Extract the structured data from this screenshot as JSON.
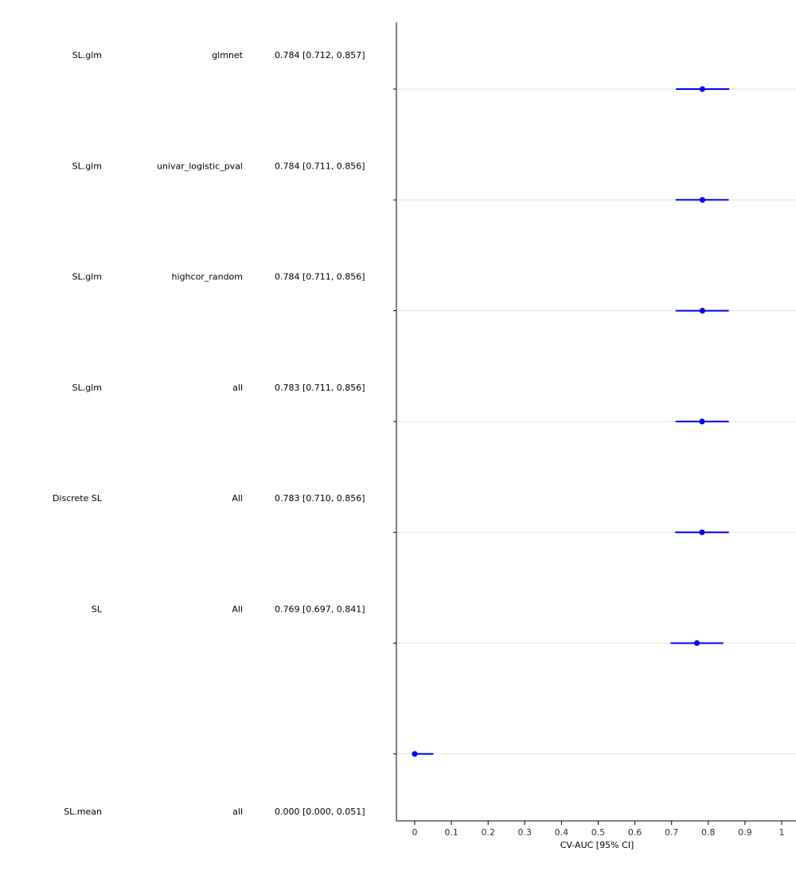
{
  "chart_data": {
    "type": "forest",
    "xlabel": "CV-AUC [95% CI]",
    "xlim": [
      -0.05,
      1.05
    ],
    "xticks": [
      "0",
      "0.1",
      "0.2",
      "0.3",
      "0.4",
      "0.5",
      "0.6",
      "0.7",
      "0.8",
      "0.9",
      "1"
    ],
    "grid": "horizontal",
    "colors": {
      "point": "#0000ee",
      "grid": "#e6e6e6",
      "axis": "#000000"
    },
    "rows": [
      {
        "learner": "SL.glm",
        "screen": "glmnet",
        "ci_text": "0.784 [0.712, 0.857]",
        "estimate": 0.784,
        "lower": 0.712,
        "upper": 0.857
      },
      {
        "learner": "SL.glm",
        "screen": "univar_logistic_pval",
        "ci_text": "0.784 [0.711, 0.856]",
        "estimate": 0.784,
        "lower": 0.711,
        "upper": 0.856
      },
      {
        "learner": "SL.glm",
        "screen": "highcor_random",
        "ci_text": "0.784 [0.711, 0.856]",
        "estimate": 0.784,
        "lower": 0.711,
        "upper": 0.856
      },
      {
        "learner": "SL.glm",
        "screen": "all",
        "ci_text": "0.783 [0.711, 0.856]",
        "estimate": 0.783,
        "lower": 0.711,
        "upper": 0.856
      },
      {
        "learner": "Discrete SL",
        "screen": "All",
        "ci_text": "0.783 [0.710, 0.856]",
        "estimate": 0.783,
        "lower": 0.71,
        "upper": 0.856
      },
      {
        "learner": "SL",
        "screen": "All",
        "ci_text": "0.769 [0.697, 0.841]",
        "estimate": 0.769,
        "lower": 0.697,
        "upper": 0.841
      },
      {
        "learner": "SL.mean",
        "screen": "all",
        "ci_text": "0.000 [0.000, 0.051]",
        "estimate": 0.0,
        "lower": 0.0,
        "upper": 0.051
      }
    ]
  }
}
